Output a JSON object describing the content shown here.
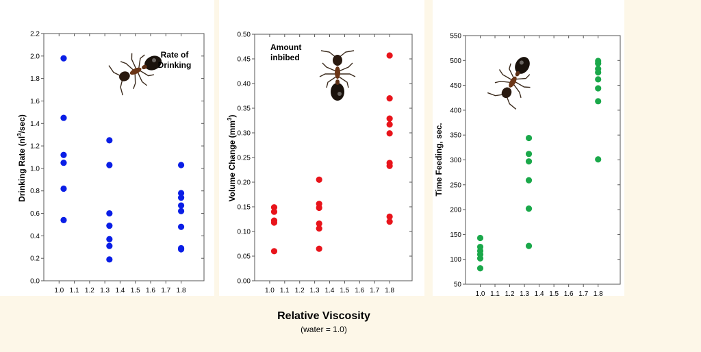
{
  "shared": {
    "xlabel": "Relative Viscosity",
    "xsub": "(water = 1.0)"
  },
  "colors": {
    "background": "#fdf7e8",
    "blue": "#0a1ee6",
    "red": "#e8141b",
    "green": "#1aa84a"
  },
  "chart_data": [
    {
      "type": "scatter",
      "title": "",
      "annotation": [
        "Rate of",
        "Drinking"
      ],
      "ylabel": {
        "pre": "Drinking Rate (nl",
        "sup": "3",
        "post": "/sec)"
      },
      "xlabel": "",
      "xlim": [
        0.9,
        1.95
      ],
      "ylim": [
        0,
        2.2
      ],
      "x_ticks": [
        "1.0",
        "1.1",
        "1.2",
        "1.3",
        "1.4",
        "1.5",
        "1.6",
        "1.7",
        "1.8"
      ],
      "y_ticks": [
        "0.0",
        "0.2",
        "0.4",
        "0.6",
        "0.8",
        "1.0",
        "1.2",
        "1.4",
        "1.6",
        "1.8",
        "2.0",
        "2.2"
      ],
      "color": "#0a1ee6",
      "series": [
        {
          "points": [
            [
              1.03,
              1.98
            ],
            [
              1.03,
              1.45
            ],
            [
              1.03,
              1.12
            ],
            [
              1.03,
              1.05
            ],
            [
              1.03,
              0.82
            ],
            [
              1.03,
              0.54
            ],
            [
              1.33,
              1.25
            ],
            [
              1.33,
              1.03
            ],
            [
              1.33,
              0.6
            ],
            [
              1.33,
              0.49
            ],
            [
              1.33,
              0.37
            ],
            [
              1.33,
              0.31
            ],
            [
              1.33,
              0.19
            ],
            [
              1.8,
              1.03
            ],
            [
              1.8,
              0.78
            ],
            [
              1.8,
              0.74
            ],
            [
              1.8,
              0.67
            ],
            [
              1.8,
              0.62
            ],
            [
              1.8,
              0.48
            ],
            [
              1.8,
              0.29
            ],
            [
              1.8,
              0.28
            ]
          ]
        }
      ]
    },
    {
      "type": "scatter",
      "title": "",
      "annotation": [
        "Amount",
        "inbibed"
      ],
      "ylabel": {
        "pre": "Volume Change (mm",
        "sup": "3",
        "post": ")"
      },
      "xlabel": "",
      "xlim": [
        0.9,
        1.95
      ],
      "ylim": [
        0,
        0.5
      ],
      "x_ticks": [
        "1.0",
        "1.1",
        "1.2",
        "1.3",
        "1.4",
        "1.5",
        "1.6",
        "1.7",
        "1.8"
      ],
      "y_ticks": [
        "0.00",
        "0.05",
        "0.10",
        "0.15",
        "0.20",
        "0.25",
        "0.30",
        "0.35",
        "0.40",
        "0.45",
        "0.50"
      ],
      "color": "#e8141b",
      "series": [
        {
          "points": [
            [
              1.03,
              0.149
            ],
            [
              1.03,
              0.14
            ],
            [
              1.03,
              0.122
            ],
            [
              1.03,
              0.118
            ],
            [
              1.03,
              0.06
            ],
            [
              1.33,
              0.205
            ],
            [
              1.33,
              0.156
            ],
            [
              1.33,
              0.148
            ],
            [
              1.33,
              0.116
            ],
            [
              1.33,
              0.106
            ],
            [
              1.33,
              0.065
            ],
            [
              1.8,
              0.457
            ],
            [
              1.8,
              0.37
            ],
            [
              1.8,
              0.329
            ],
            [
              1.8,
              0.317
            ],
            [
              1.8,
              0.299
            ],
            [
              1.8,
              0.239
            ],
            [
              1.8,
              0.233
            ],
            [
              1.8,
              0.13
            ],
            [
              1.8,
              0.12
            ]
          ]
        }
      ]
    },
    {
      "type": "scatter",
      "title": "",
      "annotation": [],
      "ylabel": {
        "pre": "Time Feeding, sec.",
        "sup": "",
        "post": ""
      },
      "xlabel": "",
      "xlim": [
        0.9,
        1.95
      ],
      "ylim": [
        50,
        550
      ],
      "x_ticks": [
        "1.0",
        "1.1",
        "1.2",
        "1.3",
        "1.4",
        "1.5",
        "1.6",
        "1.7",
        "1.8"
      ],
      "y_ticks": [
        "50",
        "100",
        "150",
        "200",
        "250",
        "300",
        "350",
        "400",
        "450",
        "500",
        "550"
      ],
      "color": "#1aa84a",
      "series": [
        {
          "points": [
            [
              1.0,
              143
            ],
            [
              1.0,
              125
            ],
            [
              1.0,
              117
            ],
            [
              1.0,
              110
            ],
            [
              1.0,
              102
            ],
            [
              1.0,
              82
            ],
            [
              1.33,
              344
            ],
            [
              1.33,
              312
            ],
            [
              1.33,
              297
            ],
            [
              1.33,
              259
            ],
            [
              1.33,
              202
            ],
            [
              1.33,
              127
            ],
            [
              1.8,
              499
            ],
            [
              1.8,
              494
            ],
            [
              1.8,
              483
            ],
            [
              1.8,
              476
            ],
            [
              1.8,
              462
            ],
            [
              1.8,
              444
            ],
            [
              1.8,
              418
            ],
            [
              1.8,
              301
            ]
          ]
        }
      ]
    }
  ]
}
